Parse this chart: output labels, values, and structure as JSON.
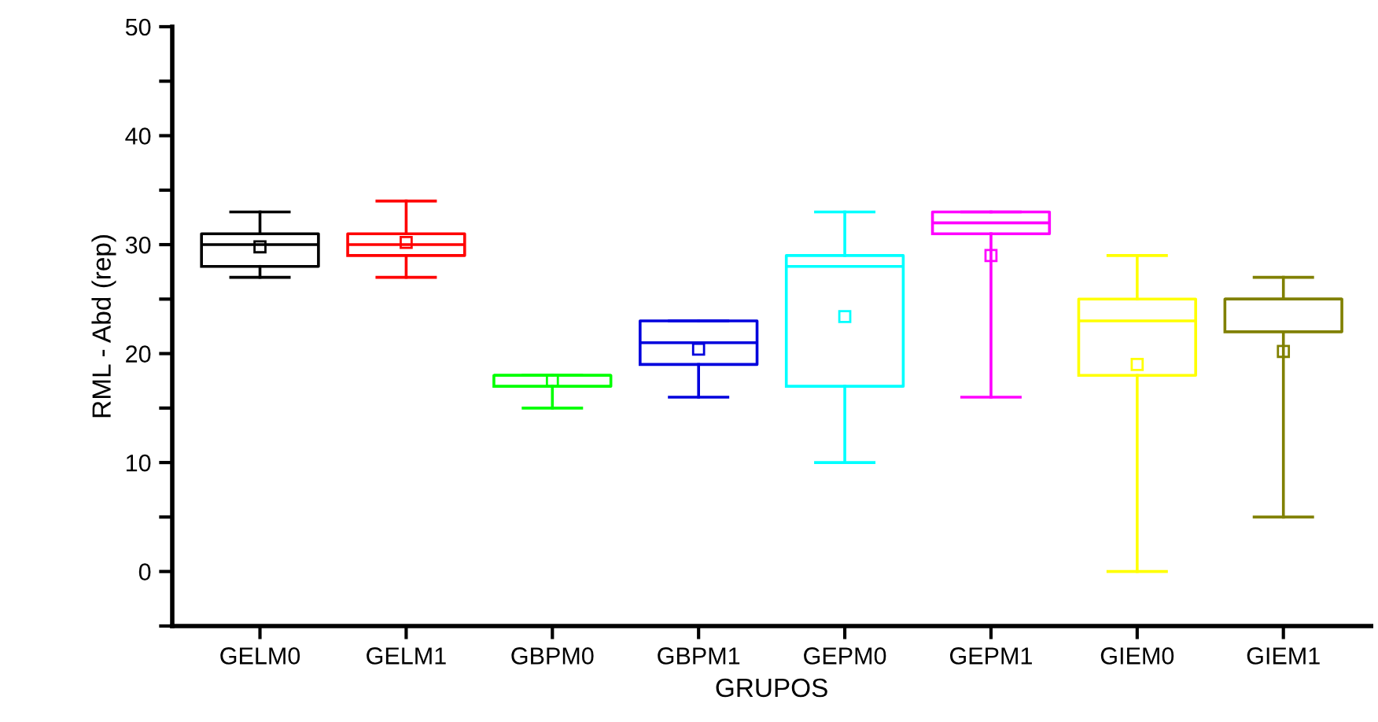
{
  "chart_data": {
    "type": "box",
    "xlabel": "GRUPOS",
    "ylabel": "RML - Abd (rep)",
    "categories": [
      "GELM0",
      "GELM1",
      "GBPM0",
      "GBPM1",
      "GEPM0",
      "GEPM1",
      "GIEM0",
      "GIEM1"
    ],
    "colors": [
      "#000000",
      "#ff0000",
      "#00ff00",
      "#0000dd",
      "#00ffff",
      "#ff00ff",
      "#ffff00",
      "#808000"
    ],
    "boxes": [
      {
        "low": 27,
        "q1": 28,
        "median": 30,
        "q3": 31,
        "high": 33,
        "mean": 29.8
      },
      {
        "low": 27,
        "q1": 29,
        "median": 30,
        "q3": 31,
        "high": 34,
        "mean": 30.2
      },
      {
        "low": 15,
        "q1": 17,
        "median": 18,
        "q3": 18,
        "high": 18,
        "mean": 17.5
      },
      {
        "low": 16,
        "q1": 19,
        "median": 21,
        "q3": 23,
        "high": 23,
        "mean": 20.4
      },
      {
        "low": 10,
        "q1": 17,
        "median": 28,
        "q3": 29,
        "high": 33,
        "mean": 23.4
      },
      {
        "low": 16,
        "q1": 31,
        "median": 32,
        "q3": 33,
        "high": 33,
        "mean": 29
      },
      {
        "low": 0,
        "q1": 18,
        "median": 23,
        "q3": 25,
        "high": 29,
        "mean": 19
      },
      {
        "low": 5,
        "q1": 22,
        "median": 25,
        "q3": 25,
        "high": 27,
        "mean": 20.2
      }
    ],
    "ylim": [
      -5,
      50
    ],
    "yticks": [
      {
        "value": -5,
        "label": null
      },
      0,
      {
        "value": 5,
        "label": null
      },
      10,
      {
        "value": 15,
        "label": null
      },
      20,
      {
        "value": 25,
        "label": null
      },
      30,
      {
        "value": 35,
        "label": null
      },
      40,
      {
        "value": 45,
        "label": null
      },
      50
    ],
    "marker": "square",
    "grid": false,
    "legend": false
  }
}
